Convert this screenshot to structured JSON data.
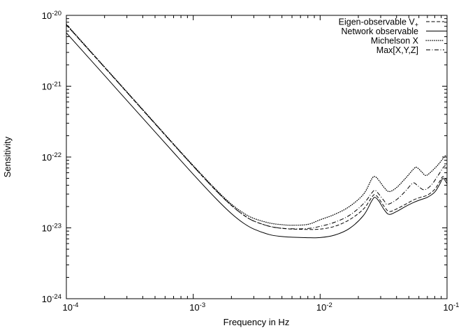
{
  "window": {
    "background": "#ffffff",
    "foreground": "#000000"
  },
  "axes": {
    "xlabel": "Frequency in Hz",
    "ylabel": "Sensitivity",
    "tick_base": "10",
    "x_tick_exponents": [
      -4,
      -3,
      -2,
      -1
    ],
    "y_tick_exponents": [
      -20,
      -21,
      -22,
      -23,
      -24
    ],
    "x_log_range": [
      -4,
      -1
    ],
    "y_log_range": [
      -24,
      -20
    ],
    "grid": false
  },
  "legend": {
    "position": "top-right",
    "entries": [
      {
        "label": "Eigen-observable V",
        "subscript": "+",
        "style": "dashed"
      },
      {
        "label": "Network observable",
        "subscript": "",
        "style": "solid"
      },
      {
        "label": "Michelson X",
        "subscript": "",
        "style": "dotted"
      },
      {
        "label": "Max[X,Y,Z]",
        "subscript": "",
        "style": "dashdot"
      }
    ]
  },
  "chart_data": {
    "type": "line",
    "title": "",
    "xlabel": "Frequency in Hz",
    "ylabel": "Sensitivity",
    "x_scale": "log",
    "y_scale": "log",
    "xlim": [
      0.0001,
      0.1
    ],
    "ylim": [
      1e-24,
      1e-20
    ],
    "grid": false,
    "legend_position": "top-right",
    "series": [
      {
        "name": "Eigen-observable V+",
        "style": "dashed",
        "f": [
          0.0001,
          0.00015,
          0.00025,
          0.0004,
          0.0007,
          0.001,
          0.0015,
          0.002,
          0.0025,
          0.003,
          0.004,
          0.005,
          0.006,
          0.008,
          0.01,
          0.013,
          0.017,
          0.022,
          0.0255,
          0.027,
          0.029,
          0.032,
          0.035,
          0.04,
          0.047,
          0.055,
          0.062,
          0.07,
          0.08,
          0.088,
          0.093,
          0.1
        ],
        "S": [
          7.36e-21,
          3.27e-21,
          1.18e-21,
          4.6e-22,
          1.5e-22,
          7.42e-23,
          3.4e-23,
          2.07e-23,
          1.51e-23,
          1.25e-23,
          1.05e-23,
          9.85e-24,
          9.62e-24,
          9.5e-24,
          9.6e-24,
          1.05e-23,
          1.3e-23,
          1.85e-23,
          2.7e-23,
          2.95e-23,
          2.6e-23,
          2e-23,
          1.7e-23,
          1.85e-23,
          2.15e-23,
          2.5e-23,
          2.7e-23,
          2.9e-23,
          3.5e-23,
          4.6e-23,
          5.3e-23,
          4.6e-23
        ]
      },
      {
        "name": "Network observable",
        "style": "solid",
        "f": [
          0.0001,
          0.00015,
          0.00025,
          0.0004,
          0.0007,
          0.001,
          0.0015,
          0.002,
          0.0025,
          0.003,
          0.004,
          0.005,
          0.006,
          0.008,
          0.01,
          0.013,
          0.017,
          0.022,
          0.0255,
          0.027,
          0.029,
          0.032,
          0.035,
          0.04,
          0.047,
          0.055,
          0.062,
          0.07,
          0.08,
          0.088,
          0.093,
          0.1
        ],
        "S": [
          5.66e-21,
          2.52e-21,
          9.06e-22,
          3.54e-22,
          1.16e-22,
          5.7e-23,
          2.62e-23,
          1.59e-23,
          1.16e-23,
          9.63e-24,
          8.02e-24,
          7.55e-24,
          7.38e-24,
          7.26e-24,
          7.3e-24,
          7.9e-24,
          9.8e-24,
          1.5e-23,
          2.4e-23,
          2.7e-23,
          2.4e-23,
          1.8e-23,
          1.55e-23,
          1.7e-23,
          2e-23,
          2.3e-23,
          2.5e-23,
          2.7e-23,
          3.2e-23,
          4.2e-23,
          5e-23,
          4.2e-23
        ]
      },
      {
        "name": "Michelson X",
        "style": "dotted",
        "f": [
          0.0001,
          0.00015,
          0.00025,
          0.0004,
          0.0007,
          0.001,
          0.0015,
          0.002,
          0.0025,
          0.003,
          0.004,
          0.005,
          0.006,
          0.008,
          0.01,
          0.013,
          0.017,
          0.022,
          0.0255,
          0.027,
          0.029,
          0.032,
          0.035,
          0.04,
          0.047,
          0.055,
          0.058,
          0.063,
          0.068,
          0.075,
          0.085,
          0.095,
          0.098,
          0.1
        ],
        "S": [
          7.5e-21,
          3.33e-21,
          1.2e-21,
          4.69e-22,
          1.53e-22,
          7.59e-23,
          3.52e-23,
          2.16e-23,
          1.61e-23,
          1.36e-23,
          1.17e-23,
          1.11e-23,
          1.09e-23,
          1.12e-23,
          1.3e-23,
          1.55e-23,
          2e-23,
          3e-23,
          4.9e-23,
          5.3e-23,
          4.7e-23,
          3.7e-23,
          3.25e-23,
          3.7e-23,
          5e-23,
          6.9e-23,
          7.1e-23,
          6.2e-23,
          5.5e-23,
          6.2e-23,
          7.8e-23,
          1e-22,
          1.05e-22,
          1.05e-22
        ]
      },
      {
        "name": "Max[X,Y,Z]",
        "style": "dashdot",
        "f": [
          0.0001,
          0.00015,
          0.00025,
          0.0004,
          0.0007,
          0.001,
          0.0015,
          0.002,
          0.0025,
          0.003,
          0.004,
          0.005,
          0.006,
          0.008,
          0.01,
          0.013,
          0.017,
          0.022,
          0.0255,
          0.027,
          0.029,
          0.032,
          0.034,
          0.04,
          0.047,
          0.054,
          0.059,
          0.066,
          0.075,
          0.085,
          0.095,
          0.098,
          0.1
        ],
        "S": [
          7.36e-21,
          3.27e-21,
          1.18e-21,
          4.6e-22,
          1.5e-22,
          7.42e-23,
          3.4e-23,
          2.07e-23,
          1.51e-23,
          1.25e-23,
          1.05e-23,
          9.9e-24,
          9.7e-24,
          9.8e-24,
          1.05e-23,
          1.2e-23,
          1.5e-23,
          2.2e-23,
          3.1e-23,
          3.4e-23,
          3e-23,
          2.4e-23,
          2.15e-23,
          2.5e-23,
          3.3e-23,
          4.3e-23,
          3.9e-23,
          3.45e-23,
          4e-23,
          5.5e-23,
          7.4e-23,
          7.2e-23,
          6.8e-23
        ]
      }
    ]
  }
}
